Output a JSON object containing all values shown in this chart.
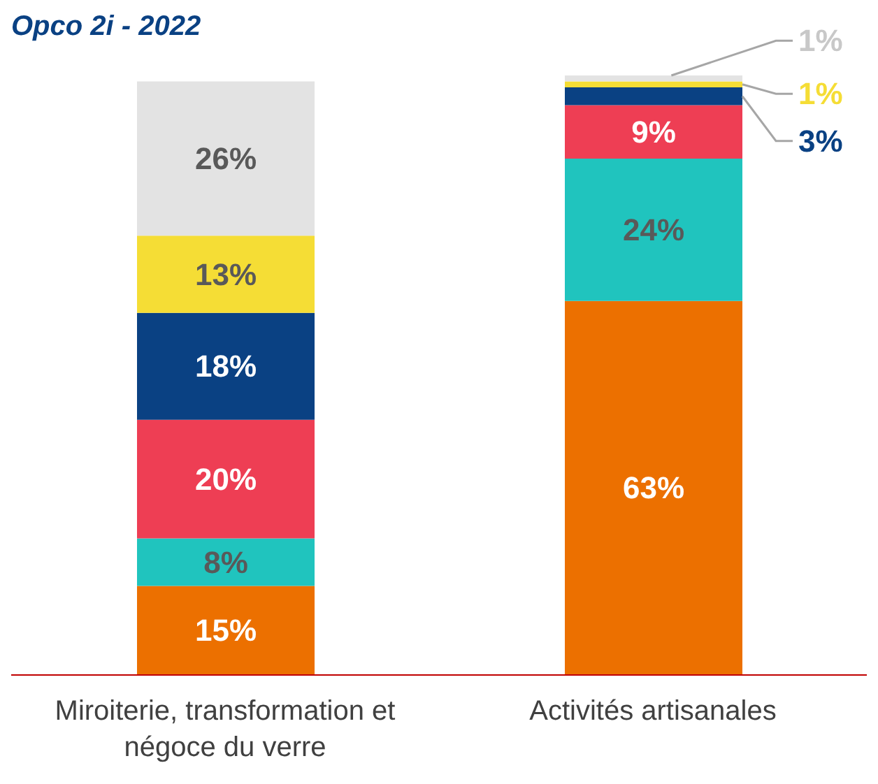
{
  "chart_data": {
    "type": "bar",
    "title": "Opco 2i - 2022",
    "stacked": true,
    "data_labels": true,
    "categories": [
      "Miroiterie, transformation et négoce du verre",
      "Activités artisanales"
    ],
    "series": [
      {
        "color": "#ec7000",
        "values": [
          15,
          63
        ],
        "value_labels": [
          "15%",
          "63%"
        ]
      },
      {
        "color": "#20c4be",
        "values": [
          8,
          24
        ],
        "value_labels": [
          "8%",
          "24%"
        ]
      },
      {
        "color": "#ee3e54",
        "values": [
          20,
          9
        ],
        "value_labels": [
          "20%",
          "9%"
        ]
      },
      {
        "color": "#0a4183",
        "values": [
          18,
          3
        ],
        "value_labels": [
          "18%",
          "3%"
        ]
      },
      {
        "color": "#f5dd35",
        "values": [
          13,
          1
        ],
        "value_labels": [
          "13%",
          "1%"
        ]
      },
      {
        "color": "#e3e3e3",
        "values": [
          26,
          1
        ],
        "value_labels": [
          "26%",
          "1%"
        ]
      }
    ]
  }
}
